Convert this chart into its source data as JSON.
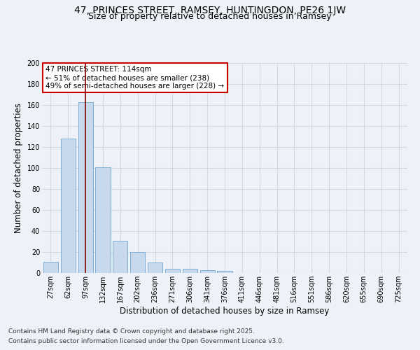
{
  "title": "47, PRINCES STREET, RAMSEY, HUNTINGDON, PE26 1JW",
  "subtitle": "Size of property relative to detached houses in Ramsey",
  "xlabel": "Distribution of detached houses by size in Ramsey",
  "ylabel": "Number of detached properties",
  "categories": [
    "27sqm",
    "62sqm",
    "97sqm",
    "132sqm",
    "167sqm",
    "202sqm",
    "236sqm",
    "271sqm",
    "306sqm",
    "341sqm",
    "376sqm",
    "411sqm",
    "446sqm",
    "481sqm",
    "516sqm",
    "551sqm",
    "586sqm",
    "620sqm",
    "655sqm",
    "690sqm",
    "725sqm"
  ],
  "values": [
    11,
    128,
    163,
    101,
    31,
    20,
    10,
    4,
    4,
    3,
    2,
    0,
    0,
    0,
    0,
    0,
    0,
    0,
    0,
    0,
    0
  ],
  "bar_color": "#c8d9ee",
  "bar_edge_color": "#6fa8d0",
  "highlight_bar_index": 2,
  "highlight_line_color": "#8b0000",
  "grid_color": "#d0d8e8",
  "background_color": "#eef2f8",
  "annotation_box_text": "47 PRINCES STREET: 114sqm\n← 51% of detached houses are smaller (238)\n49% of semi-detached houses are larger (228) →",
  "annotation_box_color": "#cc0000",
  "annotation_box_bg": "#ffffff",
  "footnote1": "Contains HM Land Registry data © Crown copyright and database right 2025.",
  "footnote2": "Contains public sector information licensed under the Open Government Licence v3.0.",
  "ylim": [
    0,
    200
  ],
  "yticks": [
    0,
    20,
    40,
    60,
    80,
    100,
    120,
    140,
    160,
    180,
    200
  ],
  "title_fontsize": 10,
  "subtitle_fontsize": 9,
  "axis_label_fontsize": 8.5,
  "tick_fontsize": 7,
  "annotation_fontsize": 7.5,
  "footnote_fontsize": 6.5
}
